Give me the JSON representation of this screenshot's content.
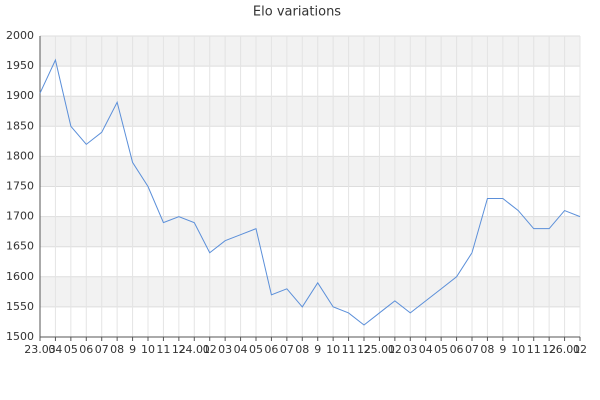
{
  "chart_data": {
    "type": "line",
    "title": "Elo variations",
    "categories": [
      "23.03",
      "04",
      "05",
      "06",
      "07",
      "08",
      "9",
      "10",
      "11",
      "12",
      "24.01",
      "02",
      "03",
      "04",
      "05",
      "06",
      "07",
      "08",
      "9",
      "10",
      "11",
      "12",
      "25.01",
      "02",
      "03",
      "04",
      "05",
      "06",
      "07",
      "08",
      "9",
      "10",
      "11",
      "12",
      "26.01",
      "02"
    ],
    "series": [
      {
        "name": "Elo",
        "color": "#5b8fd9",
        "values": [
          1905,
          1960,
          1850,
          1820,
          1840,
          1890,
          1790,
          1750,
          1690,
          1700,
          1690,
          1640,
          1660,
          1670,
          1680,
          1570,
          1580,
          1550,
          1590,
          1550,
          1540,
          1520,
          1540,
          1560,
          1540,
          1560,
          1580,
          1600,
          1640,
          1730,
          1730,
          1710,
          1680,
          1680,
          1710,
          1700
        ]
      }
    ],
    "ylim": [
      1500,
      2000
    ],
    "yticks": [
      1500,
      1550,
      1600,
      1650,
      1700,
      1750,
      1800,
      1850,
      1900,
      1950,
      2000
    ],
    "grid": true
  }
}
